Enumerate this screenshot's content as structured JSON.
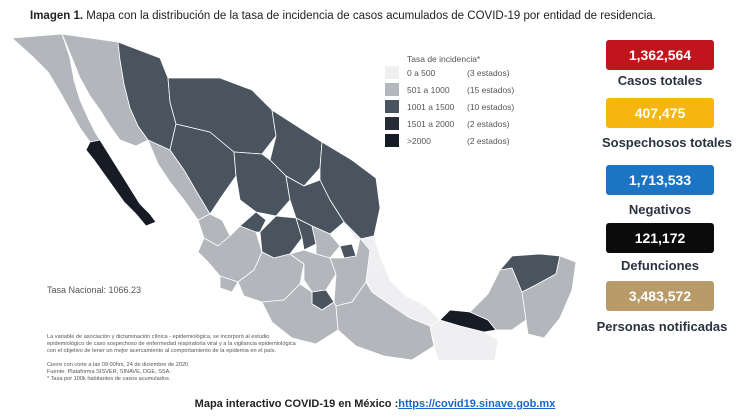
{
  "title": {
    "bold": "Imagen 1.",
    "text": " Mapa con la distribución de la tasa de incidencia de casos acumulados de COVID-19 por entidad de residencia."
  },
  "legend": {
    "title": "Tasa de incidencia*",
    "items": [
      {
        "range": "0 a 500",
        "count": "(3 estados)",
        "color": "#efeff1"
      },
      {
        "range": "501 a 1000",
        "count": "(15 estados)",
        "color": "#b3b6bb"
      },
      {
        "range": "1001 a 1500",
        "count": "(10 estados)",
        "color": "#4a545f"
      },
      {
        "range": "1501 a 2000",
        "count": "(2 estados)",
        "color": "#262c36"
      },
      {
        "range": ">2000",
        "count": "(2 estados)",
        "color": "#161b26"
      }
    ]
  },
  "tasa_nacional": "Tasa Nacional: 1066.23",
  "notes": {
    "methodology": [
      "La variable de asociación y dictaminación clínica - epidemiológica, se incorporó al estudio",
      "epidemiológico de caso sospechoso de enfermedad respiratoria viral y a la vigilancia epidemiológica",
      "con el objetivo de tener un mejor acercamiento al comportamiento de la epidemia en el país."
    ],
    "cutoff": [
      "Cierre con corte a las 09:00hrs, 24 de diciembre de 2020",
      "Fuente: Plataforma SISVER, SINAVE, DGE, SSA.",
      "* Tasa por 100k habitantes de casos acumulados."
    ]
  },
  "stats": [
    {
      "value": "1,362,564",
      "label": "Casos totales",
      "color": "#c0151d"
    },
    {
      "value": "407,475",
      "label": "Sospechosos totales",
      "color": "#f7b50f"
    },
    {
      "value": "1,713,533",
      "label": "Negativos",
      "color": "#1c74c4"
    },
    {
      "value": "121,172",
      "label": "Defunciones",
      "color": "#0b0b0b"
    },
    {
      "value": "3,483,572",
      "label": "Personas notificadas",
      "color": "#b89b69"
    }
  ],
  "footer": {
    "text": "Mapa interactivo COVID-19 en México :",
    "link": "https://covid19.sinave.gob.mx"
  }
}
